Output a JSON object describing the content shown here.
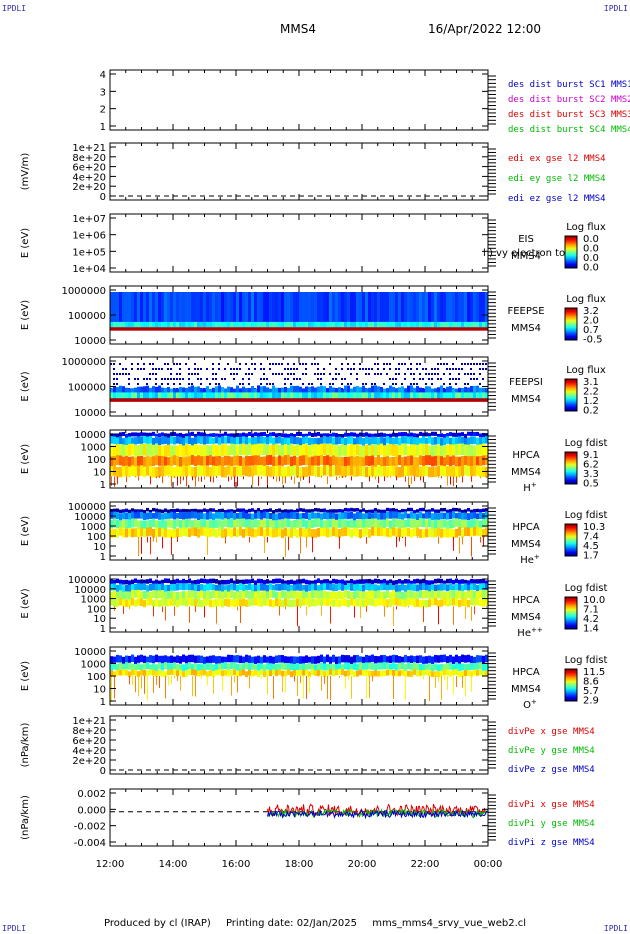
{
  "header": {
    "corner_tl": "IPDLI",
    "corner_tr": "IPDLI",
    "corner_bl": "IPDLI",
    "corner_br": "IPDLI",
    "spacecraft": "MMS4",
    "datetime": "16/Apr/2022 12:00"
  },
  "footer": {
    "produced": "Produced by cl (IRAP)",
    "printing": "Printing date: 02/Jan/2025",
    "file": "mms_mms4_srvy_vue_web2.cl"
  },
  "colors": {
    "blue": "#0000cc",
    "red": "#dd0000",
    "green": "#00bb00",
    "magenta": "#cc00cc"
  },
  "chart_data": {
    "type": "heatmap",
    "x_ticks": [
      "12:00",
      "14:00",
      "16:00",
      "18:00",
      "20:00",
      "22:00",
      "00:00"
    ],
    "panels": [
      {
        "id": "positions",
        "ylabel": "",
        "yticks": [
          "4",
          "3",
          "2",
          "1"
        ],
        "ylim": [
          0.7,
          4.3
        ],
        "legend": [
          {
            "text": "des dist burst SC1 MMS1",
            "color": "#0000cc"
          },
          {
            "text": "des dist burst SC2 MMS2",
            "color": "#cc00cc"
          },
          {
            "text": "des dist burst SC3 MMS3",
            "color": "#dd0000"
          },
          {
            "text": "des dist burst SC4 MMS4",
            "color": "#00bb00"
          }
        ]
      },
      {
        "id": "edi",
        "ylabel": "(mV/m)",
        "yticks": [
          "1e+21",
          "8e+20",
          "6e+20",
          "4e+20",
          "2e+20",
          "0"
        ],
        "ylim": [
          0,
          1e+21
        ],
        "dashed_zero": true,
        "legend": [
          {
            "text": "edi ex gse l2 MMS4",
            "color": "#dd0000"
          },
          {
            "text": "edi ey gse l2 MMS4",
            "color": "#00bb00"
          },
          {
            "text": "edi ez gse l2 MMS4",
            "color": "#0000cc"
          }
        ]
      },
      {
        "id": "eis",
        "ylabel": "E (eV)",
        "yticks": [
          "1e+07",
          "1e+06",
          "1e+05",
          "1e+04"
        ],
        "ylim": [
          10000,
          10000000
        ],
        "instrument": [
          "EIS",
          "MMS4"
        ],
        "overlay_text": "l ) vy electron to",
        "colorbar": {
          "title": "Log flux",
          "labels": [
            "0.0",
            "0.0",
            "0.0",
            "0.0"
          ]
        }
      },
      {
        "id": "feepse",
        "ylabel": "E (eV)",
        "yticks": [
          "1000000",
          "100000",
          "10000"
        ],
        "ylim": [
          10000,
          1000000
        ],
        "instrument": [
          "FEEPSE",
          "MMS4"
        ],
        "colorbar": {
          "title": "Log flux",
          "labels": [
            "3.2",
            "2.0",
            "0.7",
            "-0.5"
          ]
        },
        "spectrum": "feepse"
      },
      {
        "id": "feepsi",
        "ylabel": "E (eV)",
        "yticks": [
          "1000000",
          "100000",
          "10000"
        ],
        "ylim": [
          10000,
          1000000
        ],
        "instrument": [
          "FEEPSI",
          "MMS4"
        ],
        "colorbar": {
          "title": "Log flux",
          "labels": [
            "3.1",
            "2.2",
            "1.2",
            "0.2"
          ]
        },
        "spectrum": "feepsi"
      },
      {
        "id": "hpca-h",
        "ylabel": "E (eV)",
        "yticks": [
          "10000",
          "1000",
          "100",
          "10",
          "1"
        ],
        "ylim": [
          1,
          40000
        ],
        "instrument": [
          "HPCA",
          "MMS4",
          "H+"
        ],
        "colorbar": {
          "title": "Log fdist",
          "labels": [
            "9.1",
            "6.2",
            "3.3",
            "0.5"
          ]
        },
        "spectrum": "hpca-h"
      },
      {
        "id": "hpca-he",
        "ylabel": "E (eV)",
        "yticks": [
          "100000",
          "10000",
          "1000",
          "100",
          "10",
          "1"
        ],
        "ylim": [
          1,
          100000
        ],
        "instrument": [
          "HPCA",
          "MMS4",
          "He+"
        ],
        "colorbar": {
          "title": "Log fdist",
          "labels": [
            "10.3",
            "7.4",
            "4.5",
            "1.7"
          ]
        },
        "spectrum": "hpca-he"
      },
      {
        "id": "hpca-hepp",
        "ylabel": "E (eV)",
        "yticks": [
          "100000",
          "10000",
          "1000",
          "100",
          "10",
          "1"
        ],
        "ylim": [
          1,
          100000
        ],
        "instrument": [
          "HPCA",
          "MMS4",
          "He++"
        ],
        "colorbar": {
          "title": "Log fdist",
          "labels": [
            "10.0",
            "7.1",
            "4.2",
            "1.4"
          ]
        },
        "spectrum": "hpca-hepp"
      },
      {
        "id": "hpca-o",
        "ylabel": "E (eV)",
        "yticks": [
          "10000",
          "1000",
          "100",
          "10",
          "1"
        ],
        "ylim": [
          1,
          40000
        ],
        "instrument": [
          "HPCA",
          "MMS4",
          "O+"
        ],
        "colorbar": {
          "title": "Log fdist",
          "labels": [
            "11.5",
            "8.6",
            "5.7",
            "2.9"
          ]
        },
        "spectrum": "hpca-o"
      },
      {
        "id": "divpe",
        "ylabel": "(nPa/km)",
        "yticks": [
          "1e+21",
          "8e+20",
          "6e+20",
          "4e+20",
          "2e+20",
          "0"
        ],
        "ylim": [
          0,
          1e+21
        ],
        "dashed_zero": true,
        "legend": [
          {
            "text": "divPe x gse MMS4",
            "color": "#dd0000"
          },
          {
            "text": "divPe y gse MMS4",
            "color": "#00bb00"
          },
          {
            "text": "divPe z gse MMS4",
            "color": "#0000cc"
          }
        ]
      },
      {
        "id": "divpi",
        "ylabel": "(nPa/km)",
        "yticks": [
          "0.002",
          "0.000",
          "-0.002",
          "-0.004"
        ],
        "ylim": [
          -0.0045,
          0.003
        ],
        "dashed_zero": true,
        "legend": [
          {
            "text": "divPi x gse MMS4",
            "color": "#dd0000"
          },
          {
            "text": "divPi y gse MMS4",
            "color": "#00bb00"
          },
          {
            "text": "divPi z gse MMS4",
            "color": "#0000cc"
          }
        ],
        "series": [
          {
            "component": "x",
            "start_hour": 17.0,
            "level": 0.0002,
            "spread": 0.0009
          },
          {
            "component": "y",
            "start_hour": 17.0,
            "level": -0.0002,
            "spread": 0.0006
          },
          {
            "component": "z",
            "start_hour": 17.0,
            "level": -0.0003,
            "spread": 0.0005
          }
        ]
      }
    ]
  }
}
